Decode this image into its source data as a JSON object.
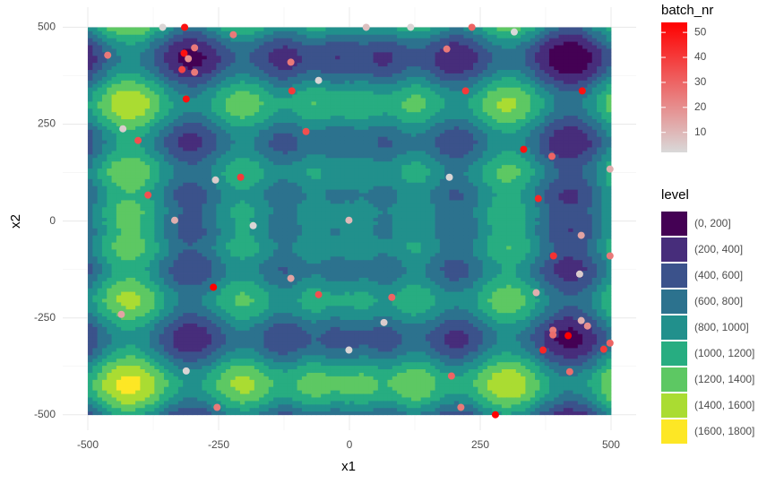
{
  "chart_data": {
    "type": "contour-scatter",
    "x_label": "x1",
    "y_label": "x2",
    "xlim": [
      -548,
      548
    ],
    "ylim": [
      -540,
      552
    ],
    "xticks": [
      -500,
      -250,
      0,
      250,
      500
    ],
    "yticks": [
      -500,
      -250,
      0,
      250,
      500
    ],
    "grid": true,
    "color_title": "batch_nr",
    "color_low": "#d9d9d9",
    "color_high": "#ff0000",
    "colorlim": [
      2,
      54
    ],
    "colorticks": [
      10,
      20,
      30,
      40,
      50
    ],
    "level_title": "level",
    "levels": [
      {
        "label": "(0, 200]",
        "from": 0,
        "to": 200,
        "color": "#440154"
      },
      {
        "label": "(200, 400]",
        "from": 200,
        "to": 400,
        "color": "#472d7b"
      },
      {
        "label": "(400, 600]",
        "from": 400,
        "to": 600,
        "color": "#3b528b"
      },
      {
        "label": "(600, 800]",
        "from": 600,
        "to": 800,
        "color": "#2c728e"
      },
      {
        "label": "(800, 1000]",
        "from": 800,
        "to": 1000,
        "color": "#21908c"
      },
      {
        "label": "(1000, 1200]",
        "from": 1000,
        "to": 1200,
        "color": "#27ad81"
      },
      {
        "label": "(1200, 1400]",
        "from": 1200,
        "to": 1400,
        "color": "#5dc863"
      },
      {
        "label": "(1400, 1600]",
        "from": 1400,
        "to": 1600,
        "color": "#aadc32"
      },
      {
        "label": "(1600, 1800]",
        "from": 1600,
        "to": 1800,
        "color": "#fde725"
      }
    ],
    "points": {
      "x": [
        -357,
        -315,
        -222,
        32,
        117,
        234,
        315,
        -462,
        -316,
        -296,
        -308,
        -320,
        -296,
        -112,
        -59,
        186,
        -110,
        222,
        445,
        -312,
        -433,
        -404,
        -83,
        333,
        387,
        498,
        -208,
        -256,
        191,
        -385,
        -334,
        -184,
        -1,
        361,
        443,
        390,
        498,
        440,
        -112,
        -260,
        -59,
        81,
        357,
        -436,
        66,
        443,
        455,
        389,
        389,
        418,
        -1,
        370,
        498,
        486,
        -312,
        195,
        421,
        -253,
        213,
        279
      ],
      "y": [
        500,
        500,
        481,
        500,
        500,
        500,
        488,
        428,
        433,
        447,
        419,
        391,
        384,
        410,
        363,
        444,
        336,
        336,
        336,
        315,
        238,
        208,
        231,
        185,
        167,
        134,
        113,
        106,
        113,
        67,
        2,
        -12,
        2,
        58,
        -37,
        -90,
        -90,
        -137,
        -148,
        -171,
        -190,
        -197,
        -185,
        -241,
        -262,
        -257,
        -271,
        -282,
        -294,
        -296,
        -333,
        -333,
        -315,
        -331,
        -387,
        -400,
        -389,
        -481,
        -481,
        -500
      ],
      "batch": [
        3,
        50,
        25,
        8,
        3,
        30,
        2,
        25,
        50,
        25,
        20,
        38,
        25,
        25,
        3,
        25,
        40,
        40,
        50,
        50,
        5,
        35,
        35,
        50,
        30,
        12,
        40,
        5,
        3,
        35,
        12,
        3,
        10,
        45,
        15,
        42,
        25,
        5,
        15,
        55,
        35,
        30,
        12,
        15,
        5,
        12,
        20,
        25,
        28,
        55,
        3,
        45,
        30,
        40,
        3,
        30,
        28,
        25,
        25,
        55
      ]
    }
  }
}
